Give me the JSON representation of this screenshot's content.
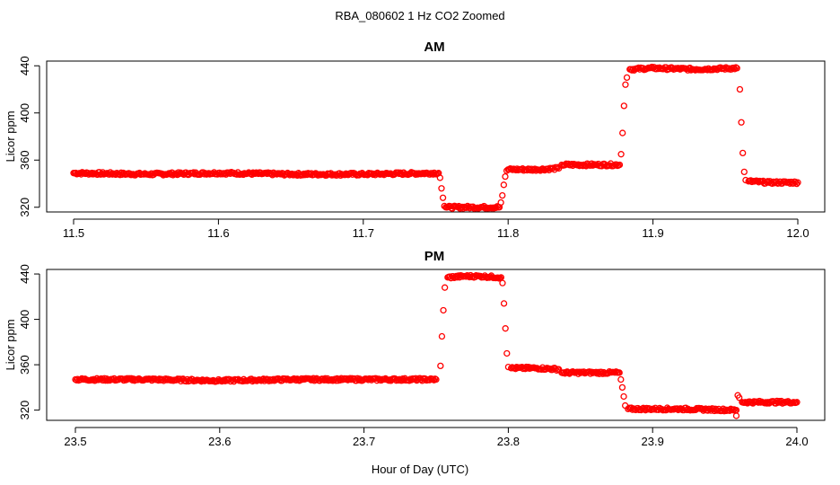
{
  "figure": {
    "title": "RBA_080602  1 Hz CO2 Zoomed",
    "xlabel": "Hour of Day (UTC)",
    "ylabel": "Licor ppm",
    "marker_color": "#ff0000",
    "marker": "open-circle"
  },
  "chart_data": [
    {
      "type": "scatter",
      "title": "AM",
      "xlabel": "",
      "ylabel": "Licor ppm",
      "xlim": [
        11.5,
        12.0
      ],
      "ylim": [
        316,
        444
      ],
      "xticks": [
        "11.5",
        "11.6",
        "11.7",
        "11.8",
        "11.9",
        "12.0"
      ],
      "yticks": [
        "320",
        "360",
        "400",
        "440"
      ],
      "grid": false,
      "series": [
        {
          "points": [
            [
              11.5,
              349
            ],
            [
              11.55,
              348
            ],
            [
              11.6,
              349
            ],
            [
              11.65,
              348
            ],
            [
              11.7,
              348
            ],
            [
              11.752,
              349
            ],
            [
              11.753,
              345
            ],
            [
              11.754,
              336
            ],
            [
              11.755,
              328
            ],
            [
              11.756,
              321
            ],
            [
              11.757,
              320
            ],
            [
              11.775,
              320
            ],
            [
              11.794,
              320
            ],
            [
              11.795,
              324
            ],
            [
              11.796,
              330
            ],
            [
              11.797,
              339
            ],
            [
              11.798,
              346
            ],
            [
              11.799,
              351
            ],
            [
              11.8,
              352
            ],
            [
              11.82,
              352
            ],
            [
              11.835,
              353
            ],
            [
              11.837,
              356
            ],
            [
              11.86,
              356
            ],
            [
              11.877,
              356
            ],
            [
              11.878,
              365
            ],
            [
              11.879,
              383
            ],
            [
              11.88,
              406
            ],
            [
              11.881,
              424
            ],
            [
              11.882,
              430
            ],
            [
              11.884,
              437
            ],
            [
              11.9,
              438
            ],
            [
              11.93,
              437
            ],
            [
              11.958,
              438
            ],
            [
              11.96,
              420
            ],
            [
              11.961,
              392
            ],
            [
              11.962,
              366
            ],
            [
              11.963,
              350
            ],
            [
              11.964,
              343
            ],
            [
              11.966,
              342
            ],
            [
              11.98,
              341
            ],
            [
              12.0,
              341
            ]
          ]
        }
      ]
    },
    {
      "type": "scatter",
      "title": "PM",
      "xlabel": "Hour of Day (UTC)",
      "ylabel": "Licor ppm",
      "xlim": [
        23.5,
        24.0
      ],
      "ylim": [
        311,
        444
      ],
      "xticks": [
        "23.5",
        "23.6",
        "23.7",
        "23.8",
        "23.9",
        "24.0"
      ],
      "yticks": [
        "320",
        "360",
        "400",
        "440"
      ],
      "grid": false,
      "series": [
        {
          "points": [
            [
              23.5,
              347
            ],
            [
              23.55,
              347
            ],
            [
              23.6,
              346
            ],
            [
              23.65,
              347
            ],
            [
              23.7,
              347
            ],
            [
              23.75,
              347
            ],
            [
              23.753,
              359
            ],
            [
              23.754,
              385
            ],
            [
              23.755,
              408
            ],
            [
              23.756,
              428
            ],
            [
              23.758,
              437
            ],
            [
              23.77,
              438
            ],
            [
              23.78,
              438
            ],
            [
              23.795,
              437
            ],
            [
              23.796,
              432
            ],
            [
              23.797,
              414
            ],
            [
              23.798,
              392
            ],
            [
              23.799,
              370
            ],
            [
              23.8,
              358
            ],
            [
              23.802,
              357
            ],
            [
              23.82,
              357
            ],
            [
              23.835,
              356
            ],
            [
              23.837,
              353
            ],
            [
              23.86,
              353
            ],
            [
              23.877,
              353
            ],
            [
              23.878,
              347
            ],
            [
              23.879,
              340
            ],
            [
              23.88,
              332
            ],
            [
              23.881,
              324
            ],
            [
              23.883,
              321
            ],
            [
              23.92,
              321
            ],
            [
              23.958,
              320
            ],
            [
              23.958,
              315
            ],
            [
              23.959,
              333
            ],
            [
              23.96,
              331
            ],
            [
              23.962,
              327
            ],
            [
              23.98,
              327
            ],
            [
              24.0,
              327
            ]
          ]
        }
      ]
    }
  ]
}
